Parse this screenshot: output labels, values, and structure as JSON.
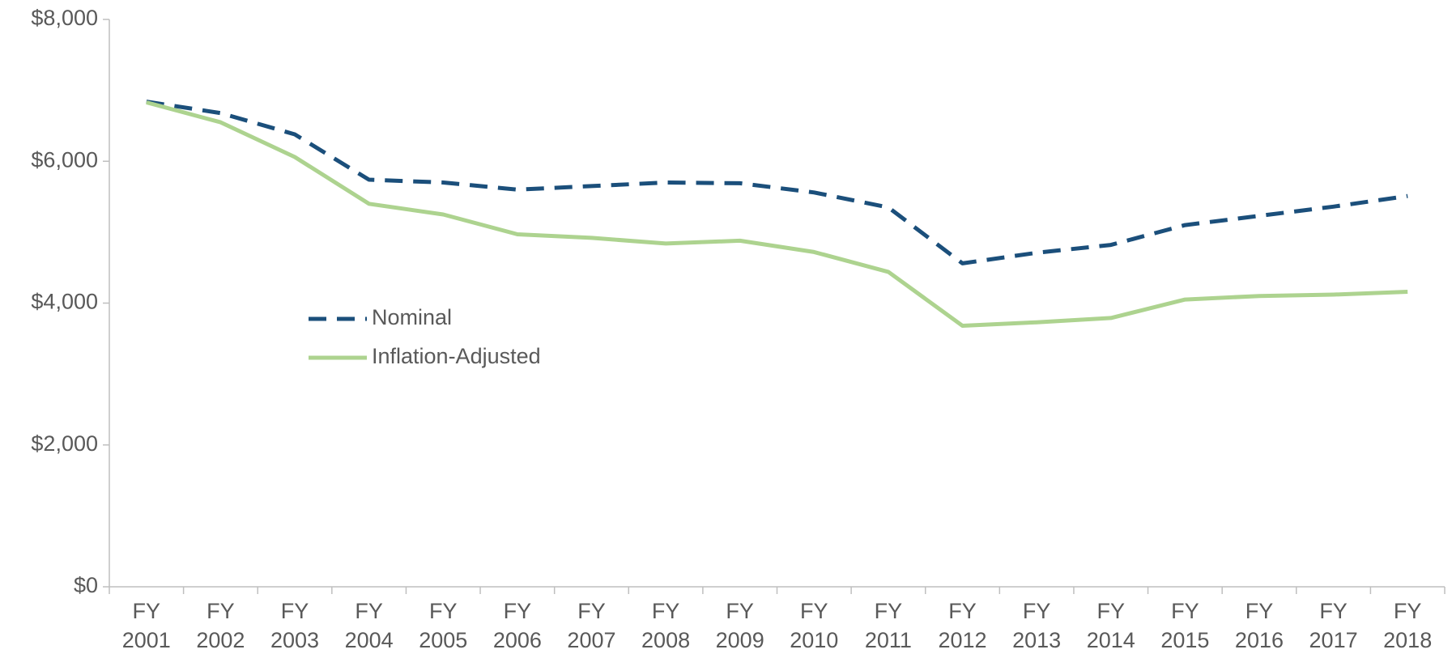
{
  "chart_data": {
    "type": "line",
    "categories": [
      "FY 2001",
      "FY 2002",
      "FY 2003",
      "FY 2004",
      "FY 2005",
      "FY 2006",
      "FY 2007",
      "FY 2008",
      "FY 2009",
      "FY 2010",
      "FY 2011",
      "FY 2012",
      "FY 2013",
      "FY 2014",
      "FY 2015",
      "FY 2016",
      "FY 2017",
      "FY 2018"
    ],
    "series": [
      {
        "name": "Nominal",
        "color": "#1b4f7b",
        "dashed": true,
        "values": [
          6840,
          6680,
          6380,
          5740,
          5700,
          5600,
          5650,
          5700,
          5690,
          5560,
          5350,
          4560,
          4710,
          4820,
          5100,
          5230,
          5360,
          5510
        ]
      },
      {
        "name": "Inflation-Adjusted",
        "color": "#add38f",
        "dashed": false,
        "values": [
          6830,
          6550,
          6060,
          5400,
          5250,
          4970,
          4920,
          4840,
          4880,
          4720,
          4440,
          3680,
          3730,
          3790,
          4050,
          4100,
          4120,
          4160
        ]
      }
    ],
    "ylim": [
      0,
      8000
    ],
    "yticks": [
      {
        "value": 0,
        "label": "$0"
      },
      {
        "value": 2000,
        "label": "$2,000"
      },
      {
        "value": 4000,
        "label": "$4,000"
      },
      {
        "value": 6000,
        "label": "$6,000"
      },
      {
        "value": 8000,
        "label": "$8,000"
      }
    ],
    "grid": false,
    "legend_position": "left"
  }
}
